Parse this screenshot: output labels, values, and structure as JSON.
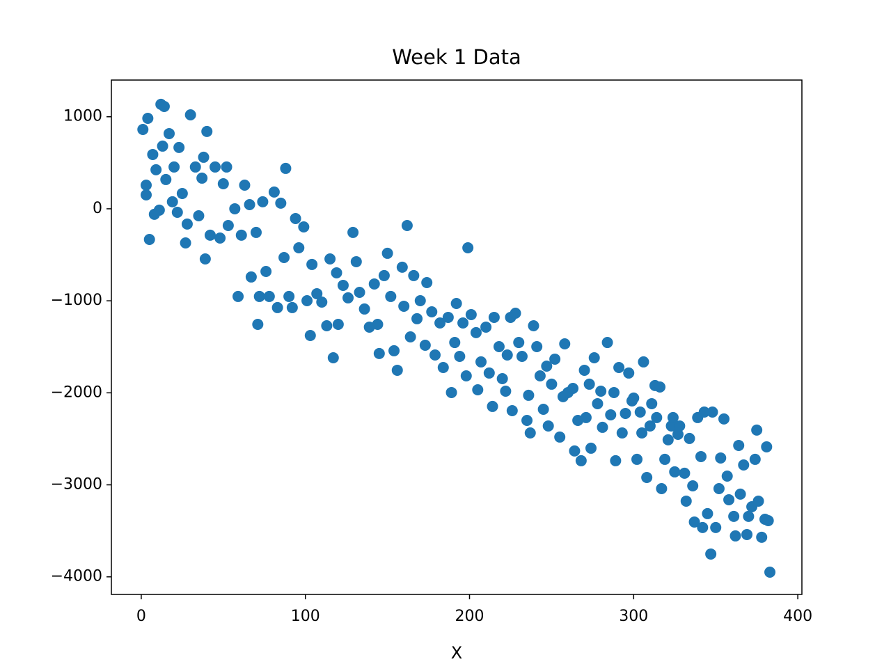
{
  "chart_data": {
    "type": "scatter",
    "title": "Week 1 Data",
    "x_label": "X",
    "color": "#1f77b4",
    "x": [
      1,
      3,
      3,
      4,
      5,
      7,
      8,
      9,
      11,
      12,
      13,
      14,
      15,
      17,
      19,
      20,
      22,
      23,
      25,
      27,
      28,
      30,
      33,
      35,
      37,
      38,
      39,
      40,
      42,
      45,
      48,
      50,
      52,
      53,
      57,
      59,
      61,
      63,
      66,
      67,
      70,
      71,
      72,
      74,
      76,
      78,
      81,
      83,
      85,
      87,
      88,
      90,
      92,
      94,
      96,
      99,
      101,
      103,
      104,
      107,
      110,
      113,
      115,
      117,
      119,
      120,
      123,
      126,
      129,
      131,
      133,
      136,
      139,
      142,
      144,
      145,
      148,
      150,
      152,
      154,
      156,
      159,
      160,
      162,
      164,
      166,
      168,
      170,
      173,
      174,
      177,
      179,
      182,
      184,
      187,
      189,
      191,
      192,
      194,
      196,
      198,
      199,
      201,
      204,
      205,
      207,
      210,
      212,
      214,
      215,
      218,
      220,
      222,
      223,
      225,
      226,
      228,
      230,
      232,
      235,
      236,
      237,
      239,
      241,
      243,
      245,
      247,
      248,
      250,
      252,
      255,
      257,
      258,
      260,
      263,
      264,
      266,
      268,
      270,
      271,
      273,
      274,
      276,
      278,
      280,
      281,
      284,
      286,
      288,
      289,
      291,
      293,
      295,
      297,
      299,
      300,
      302,
      304,
      305,
      306,
      308,
      310,
      311,
      313,
      314,
      316,
      317,
      319,
      321,
      323,
      324,
      325,
      327,
      328,
      331,
      332,
      334,
      336,
      337,
      339,
      341,
      342,
      343,
      345,
      347,
      348,
      350,
      352,
      353,
      355,
      357,
      358,
      361,
      362,
      364,
      365,
      367,
      369,
      370,
      372,
      374,
      375,
      376,
      378,
      380,
      381,
      382,
      383
    ],
    "values": [
      862,
      151,
      257,
      983,
      -333,
      590,
      -60,
      424,
      -15,
      1135,
      681,
      1112,
      318,
      817,
      76,
      454,
      -38,
      666,
      166,
      -371,
      -166,
      1021,
      454,
      -76,
      333,
      560,
      -545,
      840,
      -287,
      454,
      -318,
      272,
      454,
      -182,
      0,
      -953,
      -287,
      257,
      45,
      -741,
      -257,
      -1256,
      -953,
      76,
      -681,
      -953,
      182,
      -1074,
      61,
      -530,
      439,
      -953,
      -1074,
      -106,
      -424,
      -197,
      -999,
      -1377,
      -605,
      -923,
      -1014,
      -1271,
      -545,
      -1619,
      -696,
      -1256,
      -832,
      -968,
      -257,
      -575,
      -908,
      -1089,
      -1286,
      -817,
      -1256,
      -1573,
      -726,
      -484,
      -953,
      -1543,
      -1755,
      -635,
      -1059,
      -182,
      -1392,
      -726,
      -1195,
      -999,
      -1483,
      -802,
      -1120,
      -1589,
      -1241,
      -1725,
      -1180,
      -1997,
      -1453,
      -1029,
      -1604,
      -1241,
      -1816,
      -424,
      -1150,
      -1346,
      -1967,
      -1664,
      -1286,
      -1785,
      -2148,
      -1180,
      -1498,
      -1846,
      -1982,
      -1589,
      -1180,
      -2194,
      -1135,
      -1453,
      -1604,
      -2300,
      -2027,
      -2436,
      -1271,
      -1498,
      -1816,
      -2179,
      -1710,
      -2360,
      -1906,
      -1634,
      -2481,
      -2042,
      -1468,
      -1997,
      -1952,
      -2632,
      -2300,
      -2738,
      -1755,
      -2269,
      -1906,
      -2602,
      -1619,
      -2118,
      -1982,
      -2375,
      -1453,
      -2239,
      -1997,
      -2738,
      -1725,
      -2436,
      -2224,
      -1785,
      -2088,
      -2057,
      -2723,
      -2209,
      -2436,
      -1664,
      -2920,
      -2360,
      -2118,
      -1921,
      -2269,
      -1937,
      -3041,
      -2723,
      -2511,
      -2360,
      -2269,
      -2859,
      -2451,
      -2360,
      -2874,
      -3177,
      -2496,
      -3011,
      -3404,
      -2269,
      -2693,
      -3464,
      -2209,
      -3313,
      -3752,
      -2209,
      -3464,
      -3041,
      -2708,
      -2284,
      -2905,
      -3162,
      -3343,
      -3555,
      -2572,
      -3101,
      -2784,
      -3540,
      -3343,
      -3238,
      -2723,
      -2405,
      -3177,
      -3570,
      -3374,
      -2587,
      -3389,
      -3949
    ],
    "xlim": [
      -18.2,
      402.5
    ],
    "ylim": [
      -4191,
      1399
    ],
    "xticks": [
      0,
      100,
      200,
      300,
      400
    ],
    "yticks": [
      {
        "value": -4000,
        "label": "−4000"
      },
      {
        "value": -3000,
        "label": "−3000"
      },
      {
        "value": -2000,
        "label": "−2000"
      },
      {
        "value": -1000,
        "label": "−1000"
      },
      0,
      1000
    ]
  }
}
